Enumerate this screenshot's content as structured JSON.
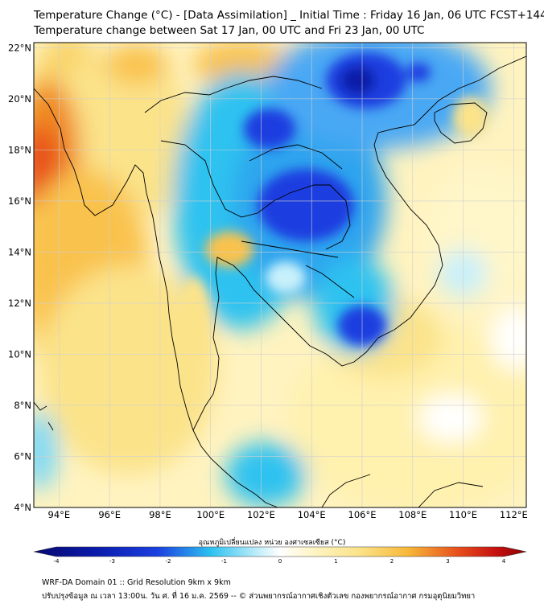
{
  "title": "Temperature Change (°C) - [Data Assimilation] _ Initial Time : Friday 16 Jan, 06 UTC FCST+144",
  "subtitle": "Temperature change between Sat 17 Jan, 00 UTC and Fri 23 Jan, 00 UTC",
  "map": {
    "lon_range": [
      93,
      112.5
    ],
    "lat_range": [
      4,
      22.2
    ],
    "lon_ticks": [
      "94°E",
      "96°E",
      "98°E",
      "100°E",
      "102°E",
      "104°E",
      "106°E",
      "108°E",
      "110°E",
      "112°E"
    ],
    "lon_tick_values": [
      94,
      96,
      98,
      100,
      102,
      104,
      106,
      108,
      110,
      112
    ],
    "lat_ticks": [
      "22°N",
      "20°N",
      "18°N",
      "16°N",
      "14°N",
      "12°N",
      "10°N",
      "8°N",
      "6°N",
      "4°N"
    ],
    "lat_tick_values": [
      22,
      20,
      18,
      16,
      14,
      12,
      10,
      8,
      6,
      4
    ],
    "regions": [
      {
        "lon": 93.5,
        "lat": 17.5,
        "value": 2.8
      },
      {
        "lon": 95.8,
        "lat": 15.3,
        "value": 2.6
      },
      {
        "lon": 101.5,
        "lat": 18.5,
        "value": -2.2
      },
      {
        "lon": 103.0,
        "lat": 16.0,
        "value": -3.0
      },
      {
        "lon": 105.5,
        "lat": 15.5,
        "value": -2.4
      },
      {
        "lon": 105.8,
        "lat": 11.2,
        "value": -2.8
      },
      {
        "lon": 106.5,
        "lat": 21.0,
        "value": -2.6
      },
      {
        "lon": 100.8,
        "lat": 14.0,
        "value": 0.9
      },
      {
        "lon": 110.2,
        "lat": 19.2,
        "value": 0.8
      },
      {
        "lon": 102.0,
        "lat": 6.5,
        "value": -1.6
      },
      {
        "lon": 106.0,
        "lat": 6.0,
        "value": 0.8
      }
    ],
    "colors": {
      "cold_extreme": "#08086e",
      "cold": "#1a3ee0",
      "cool": "#2ec2f0",
      "neutral": "#ffffff",
      "warm": "#fbe38a",
      "hot": "#f08a24",
      "hot_extreme": "#8e0000"
    }
  },
  "colorbar": {
    "label": "อุณหภูมิเปลี่ยนแปลง หน่วย องศาเซลเซียส (°C)",
    "min": -4,
    "max": 4,
    "tick_labels": [
      "-4",
      "-3",
      "-2",
      "-1",
      "0",
      "1",
      "2",
      "3",
      "4"
    ],
    "tick_values": [
      -4,
      -3,
      -2,
      -1,
      0,
      1,
      2,
      3,
      4
    ]
  },
  "footer": {
    "line1": "WRF-DA Domain 01 :: Grid Resolution 9km x 9km",
    "line2": "ปรับปรุงข้อมูล ณ เวลา 13:00น. วัน ศ. ที่ 16 ม.ค. 2569 -- © ส่วนพยากรณ์อากาศเชิงตัวเลข กองพยากรณ์อากาศ กรมอุตุนิยมวิทยา"
  }
}
